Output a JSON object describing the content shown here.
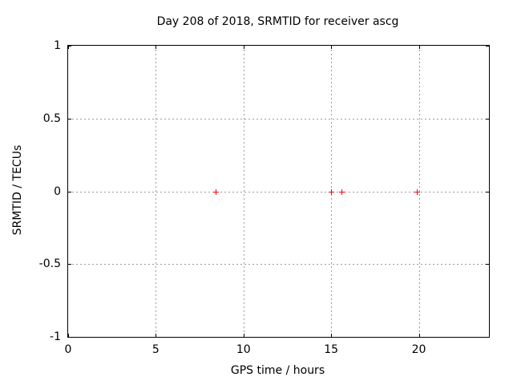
{
  "chart_data": {
    "type": "scatter",
    "title": "Day 208 of 2018, SRMTID for receiver ascg",
    "xlabel": "GPS time / hours",
    "ylabel": "SRMTID / TECUs",
    "xlim": [
      0,
      24
    ],
    "ylim": [
      -1,
      1
    ],
    "x_ticks": [
      0,
      5,
      10,
      15,
      20
    ],
    "x_tick_labels": [
      "0",
      "5",
      "10",
      "15",
      "20"
    ],
    "y_ticks": [
      1,
      0.5,
      0,
      -0.5,
      -1
    ],
    "y_tick_labels": [
      "1",
      "0.5",
      "0",
      "-0.5",
      "-1"
    ],
    "grid": true,
    "legend": false,
    "series": [
      {
        "name": "SRMTID",
        "marker": "plus",
        "color": "#ff0000",
        "points": [
          [
            8.43,
            0
          ],
          [
            15.0,
            0
          ],
          [
            15.6,
            0
          ],
          [
            19.9,
            0
          ]
        ]
      }
    ]
  },
  "colors": {
    "marker_red": "#ff0000",
    "grid_gray": "#9a9a9a",
    "border_black": "#000000",
    "text_black": "#000000",
    "background": "#ffffff"
  }
}
